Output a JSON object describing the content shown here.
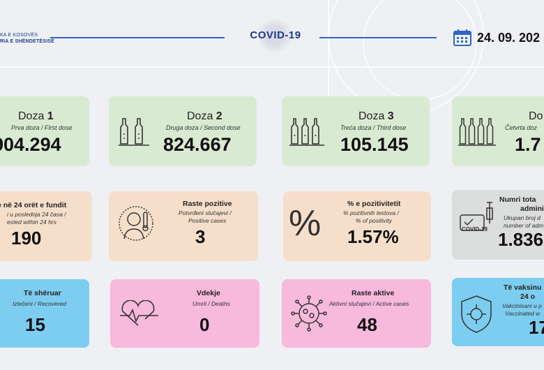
{
  "header": {
    "logo_line1": "KA E KOSOVËS",
    "logo_line2": "RIA E SHËNDETËSISË",
    "title": "COVID-19",
    "date": "24. 09. 202"
  },
  "doses": [
    {
      "title": "Doza ",
      "num": "1",
      "subtitle": "Prva doza / First dose",
      "value": "904.294"
    },
    {
      "title": "Doza ",
      "num": "2",
      "subtitle": "Druga doza / Second dose",
      "value": "824.667"
    },
    {
      "title": "Doza ",
      "num": "3",
      "subtitle": "Treća doza / Third dose",
      "value": "105.145"
    },
    {
      "title": "Do",
      "num": "",
      "subtitle": "Četvrta doz",
      "value": "1.7"
    }
  ],
  "stats_row2": [
    {
      "title": "e në 24 orët e fundit",
      "sub1": "i u poslednja 24 časa /",
      "sub2": "ested within 24 hrs",
      "value": "190"
    },
    {
      "title": "Raste pozitive",
      "sub1": "Potvrđeni slučajevi /",
      "sub2": "Positive cases",
      "value": "3"
    },
    {
      "title": "% e pozitivitetit",
      "sub1": "% pozitivnih testova /",
      "sub2": "% of positivity",
      "value": "1.57%"
    },
    {
      "title": "Numri tota",
      "title2": "admini",
      "sub1": "Ukupan broj d",
      "sub2": "number of adm",
      "value": "1.836",
      "icon_label": "COVID-19"
    }
  ],
  "stats_row3": [
    {
      "title": "Të shëruar",
      "sub1": "Izlečeni / Recovered",
      "value": "15"
    },
    {
      "title": "Vdekje",
      "sub1": "Umrli / Deaths",
      "value": "0"
    },
    {
      "title": "Raste aktive",
      "sub1": "Aktivni slučajevi / Active cases",
      "value": "48"
    },
    {
      "title": "Të vaksinu",
      "title2": "24 o",
      "sub1": "Vakcinisani u p",
      "sub2": "Vaccinated w",
      "value": "17"
    }
  ],
  "colors": {
    "green": "#d9ead2",
    "peach": "#f6dfca",
    "grey": "#dcdddd",
    "pink": "#f7b9dc",
    "blue": "#7dcdf0",
    "accent": "#1f3b8a"
  },
  "icons": {
    "calendar": "calendar-icon",
    "vial": "vial-icon",
    "sick_person": "sick-person-icon",
    "percent": "percent-icon",
    "heart_monitor": "heart-monitor-icon",
    "virus": "virus-icon",
    "shield": "shield-virus-icon",
    "syringe": "syringe-icon"
  }
}
